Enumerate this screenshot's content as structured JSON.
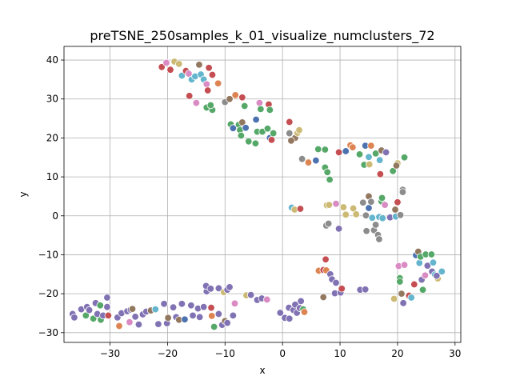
{
  "chart_data": {
    "type": "scatter",
    "title": "preTSNE_250samples_k_01_visualize_numclusters_72",
    "xlabel": "x",
    "ylabel": "y",
    "xlim": [
      -38,
      31
    ],
    "ylim": [
      -32.5,
      43.5
    ],
    "xticks": [
      -30,
      -20,
      -10,
      0,
      10,
      20,
      30
    ],
    "yticks": [
      -30,
      -20,
      -10,
      0,
      10,
      20,
      30,
      40
    ],
    "grid": true,
    "legend": "none",
    "palette": {
      "blue": "#4c72b0",
      "orange": "#dd8452",
      "green": "#55a868",
      "red": "#c44e52",
      "purple": "#8172b3",
      "brown": "#937860",
      "pink": "#da8bc3",
      "gray": "#8c8c8c",
      "olive": "#ccb974",
      "cyan": "#64b5cd"
    },
    "points": [
      {
        "x": -21.0,
        "y": 38.2,
        "c": "red"
      },
      {
        "x": -20.2,
        "y": 39.3,
        "c": "pink"
      },
      {
        "x": -19.5,
        "y": 37.5,
        "c": "red"
      },
      {
        "x": -18.8,
        "y": 39.6,
        "c": "olive"
      },
      {
        "x": -18.0,
        "y": 39.0,
        "c": "olive"
      },
      {
        "x": -17.5,
        "y": 36.0,
        "c": "cyan"
      },
      {
        "x": -16.8,
        "y": 37.2,
        "c": "red"
      },
      {
        "x": -16.3,
        "y": 36.5,
        "c": "pink"
      },
      {
        "x": -15.8,
        "y": 35.0,
        "c": "cyan"
      },
      {
        "x": -15.2,
        "y": 35.8,
        "c": "cyan"
      },
      {
        "x": -14.5,
        "y": 38.8,
        "c": "brown"
      },
      {
        "x": -14.2,
        "y": 36.3,
        "c": "cyan"
      },
      {
        "x": -13.7,
        "y": 35.0,
        "c": "cyan"
      },
      {
        "x": -13.2,
        "y": 33.8,
        "c": "pink"
      },
      {
        "x": -12.8,
        "y": 38.0,
        "c": "red"
      },
      {
        "x": -12.2,
        "y": 36.2,
        "c": "red"
      },
      {
        "x": -13.0,
        "y": 32.2,
        "c": "red"
      },
      {
        "x": -11.2,
        "y": 34.0,
        "c": "orange"
      },
      {
        "x": -16.2,
        "y": 30.8,
        "c": "red"
      },
      {
        "x": -15.0,
        "y": 29.0,
        "c": "pink"
      },
      {
        "x": -13.2,
        "y": 27.8,
        "c": "green"
      },
      {
        "x": -12.2,
        "y": 27.2,
        "c": "green"
      },
      {
        "x": -12.5,
        "y": 28.4,
        "c": "green"
      },
      {
        "x": -10.0,
        "y": 29.2,
        "c": "gray"
      },
      {
        "x": -9.2,
        "y": 30.0,
        "c": "brown"
      },
      {
        "x": -8.2,
        "y": 31.0,
        "c": "orange"
      },
      {
        "x": -7.0,
        "y": 30.4,
        "c": "red"
      },
      {
        "x": -6.6,
        "y": 28.2,
        "c": "green"
      },
      {
        "x": -4.0,
        "y": 29.0,
        "c": "pink"
      },
      {
        "x": -3.8,
        "y": 27.4,
        "c": "green"
      },
      {
        "x": -2.4,
        "y": 28.6,
        "c": "red"
      },
      {
        "x": -2.2,
        "y": 27.2,
        "c": "green"
      },
      {
        "x": -9.0,
        "y": 23.5,
        "c": "green"
      },
      {
        "x": -8.6,
        "y": 22.5,
        "c": "blue"
      },
      {
        "x": -7.6,
        "y": 23.4,
        "c": "green"
      },
      {
        "x": -7.4,
        "y": 22.0,
        "c": "green"
      },
      {
        "x": -7.0,
        "y": 24.0,
        "c": "brown"
      },
      {
        "x": -6.4,
        "y": 22.6,
        "c": "blue"
      },
      {
        "x": -4.6,
        "y": 24.7,
        "c": "blue"
      },
      {
        "x": -4.4,
        "y": 21.6,
        "c": "green"
      },
      {
        "x": -3.5,
        "y": 21.6,
        "c": "green"
      },
      {
        "x": -2.6,
        "y": 22.4,
        "c": "green"
      },
      {
        "x": -2.2,
        "y": 20.0,
        "c": "blue"
      },
      {
        "x": -1.6,
        "y": 21.2,
        "c": "green"
      },
      {
        "x": -1.9,
        "y": 19.5,
        "c": "red"
      },
      {
        "x": -7.2,
        "y": 20.6,
        "c": "green"
      },
      {
        "x": -5.9,
        "y": 19.1,
        "c": "green"
      },
      {
        "x": -4.7,
        "y": 18.6,
        "c": "green"
      },
      {
        "x": 1.2,
        "y": 24.1,
        "c": "red"
      },
      {
        "x": 1.2,
        "y": 21.2,
        "c": "gray"
      },
      {
        "x": 2.2,
        "y": 20.0,
        "c": "brown"
      },
      {
        "x": 2.6,
        "y": 21.3,
        "c": "olive"
      },
      {
        "x": 2.9,
        "y": 22.0,
        "c": "olive"
      },
      {
        "x": 1.5,
        "y": 19.3,
        "c": "brown"
      },
      {
        "x": 3.4,
        "y": 14.6,
        "c": "gray"
      },
      {
        "x": 4.5,
        "y": 13.7,
        "c": "orange"
      },
      {
        "x": 5.8,
        "y": 14.2,
        "c": "blue"
      },
      {
        "x": 6.2,
        "y": 17.1,
        "c": "green"
      },
      {
        "x": 7.4,
        "y": 17.0,
        "c": "green"
      },
      {
        "x": 7.4,
        "y": 12.4,
        "c": "green"
      },
      {
        "x": 7.8,
        "y": 11.2,
        "c": "green"
      },
      {
        "x": 8.2,
        "y": 9.3,
        "c": "green"
      },
      {
        "x": 9.8,
        "y": 16.3,
        "c": "red"
      },
      {
        "x": 11.0,
        "y": 16.6,
        "c": "blue"
      },
      {
        "x": 11.8,
        "y": 18.1,
        "c": "orange"
      },
      {
        "x": 12.2,
        "y": 17.6,
        "c": "orange"
      },
      {
        "x": 13.4,
        "y": 15.8,
        "c": "green"
      },
      {
        "x": 14.2,
        "y": 13.1,
        "c": "green"
      },
      {
        "x": 14.4,
        "y": 18.0,
        "c": "blue"
      },
      {
        "x": 15.0,
        "y": 15.1,
        "c": "cyan"
      },
      {
        "x": 15.1,
        "y": 13.2,
        "c": "olive"
      },
      {
        "x": 15.4,
        "y": 18.0,
        "c": "orange"
      },
      {
        "x": 16.2,
        "y": 16.0,
        "c": "green"
      },
      {
        "x": 16.9,
        "y": 14.3,
        "c": "cyan"
      },
      {
        "x": 17.0,
        "y": 10.7,
        "c": "red"
      },
      {
        "x": 17.2,
        "y": 16.8,
        "c": "brown"
      },
      {
        "x": 18.0,
        "y": 16.3,
        "c": "purple"
      },
      {
        "x": 19.2,
        "y": 11.5,
        "c": "green"
      },
      {
        "x": 20.0,
        "y": 13.5,
        "c": "olive"
      },
      {
        "x": 19.8,
        "y": 12.9,
        "c": "brown"
      },
      {
        "x": 21.2,
        "y": 15.0,
        "c": "green"
      },
      {
        "x": 20.9,
        "y": 6.7,
        "c": "gray"
      },
      {
        "x": 20.9,
        "y": 6.1,
        "c": "gray"
      },
      {
        "x": 1.6,
        "y": 2.1,
        "c": "cyan"
      },
      {
        "x": 2.1,
        "y": 1.6,
        "c": "olive"
      },
      {
        "x": 3.1,
        "y": 1.8,
        "c": "red"
      },
      {
        "x": 7.7,
        "y": 2.7,
        "c": "olive"
      },
      {
        "x": 8.1,
        "y": 2.8,
        "c": "olive"
      },
      {
        "x": 7.6,
        "y": -2.5,
        "c": "gray"
      },
      {
        "x": 8.0,
        "y": -2.0,
        "c": "gray"
      },
      {
        "x": 9.3,
        "y": 3.1,
        "c": "pink"
      },
      {
        "x": 9.8,
        "y": -3.3,
        "c": "purple"
      },
      {
        "x": 10.6,
        "y": 2.2,
        "c": "olive"
      },
      {
        "x": 11.0,
        "y": 0.3,
        "c": "olive"
      },
      {
        "x": 12.3,
        "y": 1.9,
        "c": "olive"
      },
      {
        "x": 12.8,
        "y": 0.4,
        "c": "olive"
      },
      {
        "x": 14.0,
        "y": 3.4,
        "c": "gray"
      },
      {
        "x": 14.5,
        "y": 0.1,
        "c": "gray"
      },
      {
        "x": 14.6,
        "y": -3.9,
        "c": "gray"
      },
      {
        "x": 15.0,
        "y": 2.0,
        "c": "blue"
      },
      {
        "x": 15.0,
        "y": 5.0,
        "c": "brown"
      },
      {
        "x": 15.4,
        "y": 3.6,
        "c": "gray"
      },
      {
        "x": 15.6,
        "y": -0.5,
        "c": "cyan"
      },
      {
        "x": 15.9,
        "y": -3.7,
        "c": "gray"
      },
      {
        "x": 16.2,
        "y": -2.3,
        "c": "gray"
      },
      {
        "x": 16.6,
        "y": -4.9,
        "c": "gray"
      },
      {
        "x": 16.8,
        "y": -0.3,
        "c": "cyan"
      },
      {
        "x": 17.2,
        "y": 3.7,
        "c": "green"
      },
      {
        "x": 17.3,
        "y": 4.6,
        "c": "green"
      },
      {
        "x": 17.4,
        "y": -0.6,
        "c": "cyan"
      },
      {
        "x": 16.8,
        "y": -6.0,
        "c": "gray"
      },
      {
        "x": 17.8,
        "y": 2.8,
        "c": "pink"
      },
      {
        "x": 18.7,
        "y": -0.4,
        "c": "purple"
      },
      {
        "x": 19.7,
        "y": -0.2,
        "c": "cyan"
      },
      {
        "x": 19.6,
        "y": 1.6,
        "c": "brown"
      },
      {
        "x": 20.0,
        "y": 3.5,
        "c": "red"
      },
      {
        "x": 20.5,
        "y": 0.2,
        "c": "gray"
      },
      {
        "x": 7.5,
        "y": -11.2,
        "c": "red"
      },
      {
        "x": 6.3,
        "y": -14.1,
        "c": "orange"
      },
      {
        "x": 7.1,
        "y": -13.9,
        "c": "red"
      },
      {
        "x": 7.6,
        "y": -14.0,
        "c": "orange"
      },
      {
        "x": 8.3,
        "y": -15.0,
        "c": "purple"
      },
      {
        "x": 8.6,
        "y": -16.3,
        "c": "purple"
      },
      {
        "x": 9.3,
        "y": -17.2,
        "c": "purple"
      },
      {
        "x": 9.1,
        "y": -19.9,
        "c": "purple"
      },
      {
        "x": 10.1,
        "y": -19.7,
        "c": "purple"
      },
      {
        "x": 10.3,
        "y": -18.7,
        "c": "red"
      },
      {
        "x": 7.1,
        "y": -20.9,
        "c": "brown"
      },
      {
        "x": 13.5,
        "y": -19.0,
        "c": "purple"
      },
      {
        "x": 14.4,
        "y": -18.9,
        "c": "purple"
      },
      {
        "x": 20.2,
        "y": -12.9,
        "c": "pink"
      },
      {
        "x": 20.4,
        "y": -16.0,
        "c": "green"
      },
      {
        "x": 20.4,
        "y": -16.9,
        "c": "green"
      },
      {
        "x": 21.2,
        "y": -12.6,
        "c": "pink"
      },
      {
        "x": 20.7,
        "y": -20.0,
        "c": "brown"
      },
      {
        "x": 21.0,
        "y": -22.4,
        "c": "purple"
      },
      {
        "x": 19.4,
        "y": -21.3,
        "c": "olive"
      },
      {
        "x": 22.0,
        "y": -20.5,
        "c": "red"
      },
      {
        "x": 22.4,
        "y": -21.0,
        "c": "cyan"
      },
      {
        "x": 22.9,
        "y": -17.6,
        "c": "red"
      },
      {
        "x": 23.2,
        "y": -10.1,
        "c": "blue"
      },
      {
        "x": 23.6,
        "y": -9.2,
        "c": "brown"
      },
      {
        "x": 23.8,
        "y": -12.1,
        "c": "cyan"
      },
      {
        "x": 24.0,
        "y": -10.5,
        "c": "green"
      },
      {
        "x": 24.2,
        "y": -16.4,
        "c": "purple"
      },
      {
        "x": 24.4,
        "y": -19.0,
        "c": "green"
      },
      {
        "x": 24.8,
        "y": -15.3,
        "c": "pink"
      },
      {
        "x": 24.9,
        "y": -9.9,
        "c": "green"
      },
      {
        "x": 25.2,
        "y": -12.8,
        "c": "purple"
      },
      {
        "x": 25.9,
        "y": -9.9,
        "c": "green"
      },
      {
        "x": 26.2,
        "y": -12.0,
        "c": "cyan"
      },
      {
        "x": 26.0,
        "y": -14.3,
        "c": "purple"
      },
      {
        "x": 26.5,
        "y": -15.1,
        "c": "cyan"
      },
      {
        "x": 27.0,
        "y": -16.1,
        "c": "olive"
      },
      {
        "x": 27.7,
        "y": -14.3,
        "c": "cyan"
      },
      {
        "x": 26.8,
        "y": -15.4,
        "c": "purple"
      },
      {
        "x": -36.5,
        "y": -25.2,
        "c": "purple"
      },
      {
        "x": -36.2,
        "y": -26.1,
        "c": "purple"
      },
      {
        "x": -35.0,
        "y": -24.0,
        "c": "purple"
      },
      {
        "x": -34.2,
        "y": -25.6,
        "c": "green"
      },
      {
        "x": -34.0,
        "y": -23.4,
        "c": "purple"
      },
      {
        "x": -33.6,
        "y": -24.2,
        "c": "purple"
      },
      {
        "x": -32.9,
        "y": -26.4,
        "c": "green"
      },
      {
        "x": -32.5,
        "y": -22.4,
        "c": "purple"
      },
      {
        "x": -32.2,
        "y": -25.2,
        "c": "purple"
      },
      {
        "x": -31.7,
        "y": -23.0,
        "c": "green"
      },
      {
        "x": -31.6,
        "y": -26.7,
        "c": "green"
      },
      {
        "x": -31.2,
        "y": -25.6,
        "c": "purple"
      },
      {
        "x": -30.5,
        "y": -23.4,
        "c": "purple"
      },
      {
        "x": -30.5,
        "y": -21.0,
        "c": "purple"
      },
      {
        "x": -30.3,
        "y": -25.6,
        "c": "red"
      },
      {
        "x": -28.7,
        "y": -26.1,
        "c": "purple"
      },
      {
        "x": -28.4,
        "y": -28.3,
        "c": "orange"
      },
      {
        "x": -28.0,
        "y": -25.0,
        "c": "purple"
      },
      {
        "x": -27.0,
        "y": -24.5,
        "c": "purple"
      },
      {
        "x": -26.6,
        "y": -27.3,
        "c": "pink"
      },
      {
        "x": -26.4,
        "y": -24.1,
        "c": "purple"
      },
      {
        "x": -26.1,
        "y": -23.9,
        "c": "brown"
      },
      {
        "x": -25.6,
        "y": -25.9,
        "c": "purple"
      },
      {
        "x": -25.0,
        "y": -27.9,
        "c": "purple"
      },
      {
        "x": -24.3,
        "y": -25.3,
        "c": "purple"
      },
      {
        "x": -23.7,
        "y": -24.6,
        "c": "purple"
      },
      {
        "x": -22.9,
        "y": -24.3,
        "c": "brown"
      },
      {
        "x": -22.1,
        "y": -24.0,
        "c": "cyan"
      },
      {
        "x": -21.6,
        "y": -27.8,
        "c": "purple"
      },
      {
        "x": -20.6,
        "y": -22.6,
        "c": "purple"
      },
      {
        "x": -20.1,
        "y": -27.6,
        "c": "purple"
      },
      {
        "x": -19.9,
        "y": -26.2,
        "c": "brown"
      },
      {
        "x": -19.0,
        "y": -23.5,
        "c": "purple"
      },
      {
        "x": -18.5,
        "y": -26.0,
        "c": "purple"
      },
      {
        "x": -18.0,
        "y": -26.7,
        "c": "brown"
      },
      {
        "x": -17.5,
        "y": -22.6,
        "c": "purple"
      },
      {
        "x": -17.0,
        "y": -26.6,
        "c": "blue"
      },
      {
        "x": -15.9,
        "y": -23.0,
        "c": "purple"
      },
      {
        "x": -15.6,
        "y": -25.6,
        "c": "purple"
      },
      {
        "x": -14.7,
        "y": -23.8,
        "c": "purple"
      },
      {
        "x": -14.4,
        "y": -26.0,
        "c": "purple"
      },
      {
        "x": -13.7,
        "y": -23.4,
        "c": "purple"
      },
      {
        "x": -13.2,
        "y": -19.4,
        "c": "purple"
      },
      {
        "x": -13.3,
        "y": -18.0,
        "c": "purple"
      },
      {
        "x": -12.5,
        "y": -18.7,
        "c": "purple"
      },
      {
        "x": -12.4,
        "y": -23.6,
        "c": "red"
      },
      {
        "x": -12.3,
        "y": -25.7,
        "c": "orange"
      },
      {
        "x": -11.9,
        "y": -28.5,
        "c": "green"
      },
      {
        "x": -11.1,
        "y": -25.2,
        "c": "purple"
      },
      {
        "x": -11.1,
        "y": -18.6,
        "c": "purple"
      },
      {
        "x": -10.5,
        "y": -28.0,
        "c": "purple"
      },
      {
        "x": -10.2,
        "y": -19.6,
        "c": "olive"
      },
      {
        "x": -10.0,
        "y": -27.0,
        "c": "brown"
      },
      {
        "x": -9.6,
        "y": -27.5,
        "c": "purple"
      },
      {
        "x": -9.6,
        "y": -19.0,
        "c": "purple"
      },
      {
        "x": -9.2,
        "y": -18.3,
        "c": "purple"
      },
      {
        "x": -8.6,
        "y": -25.6,
        "c": "purple"
      },
      {
        "x": -8.3,
        "y": -22.5,
        "c": "pink"
      },
      {
        "x": -6.3,
        "y": -20.4,
        "c": "olive"
      },
      {
        "x": -5.5,
        "y": -20.3,
        "c": "purple"
      },
      {
        "x": -4.4,
        "y": -21.6,
        "c": "purple"
      },
      {
        "x": -3.6,
        "y": -21.2,
        "c": "purple"
      },
      {
        "x": -2.7,
        "y": -21.5,
        "c": "pink"
      },
      {
        "x": -0.4,
        "y": -24.9,
        "c": "purple"
      },
      {
        "x": 0.4,
        "y": -26.2,
        "c": "purple"
      },
      {
        "x": 1.1,
        "y": -23.6,
        "c": "purple"
      },
      {
        "x": 1.2,
        "y": -26.4,
        "c": "purple"
      },
      {
        "x": 1.9,
        "y": -24.2,
        "c": "purple"
      },
      {
        "x": 2.2,
        "y": -22.8,
        "c": "purple"
      },
      {
        "x": 2.5,
        "y": -24.9,
        "c": "purple"
      },
      {
        "x": 3.0,
        "y": -23.7,
        "c": "purple"
      },
      {
        "x": 3.6,
        "y": -24.0,
        "c": "green"
      },
      {
        "x": 3.8,
        "y": -24.7,
        "c": "orange"
      },
      {
        "x": 3.2,
        "y": -21.9,
        "c": "purple"
      }
    ]
  }
}
